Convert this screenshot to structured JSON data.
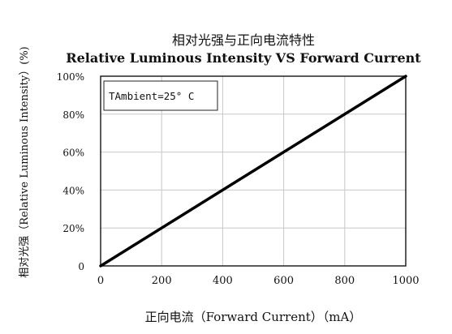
{
  "chart_data": {
    "type": "line",
    "title_cn": "相对光强与正向电流特性",
    "title_en": "Relative Luminous Intensity VS Forward Current",
    "xlabel": "正向电流（Forward Current）（mA）",
    "ylabel": "相对光强（Relative Luminous Intensity）(%)",
    "annotation": "TAmbient=25° C",
    "x_ticks": [
      "0",
      "200",
      "400",
      "600",
      "800",
      "1000"
    ],
    "y_ticks": [
      "0",
      "20%",
      "40%",
      "60%",
      "80%",
      "100%"
    ],
    "xlim": [
      0,
      1000
    ],
    "ylim": [
      0,
      100
    ],
    "grid": true,
    "series": [
      {
        "x": [
          0,
          1000
        ],
        "y": [
          0,
          100
        ]
      }
    ]
  }
}
